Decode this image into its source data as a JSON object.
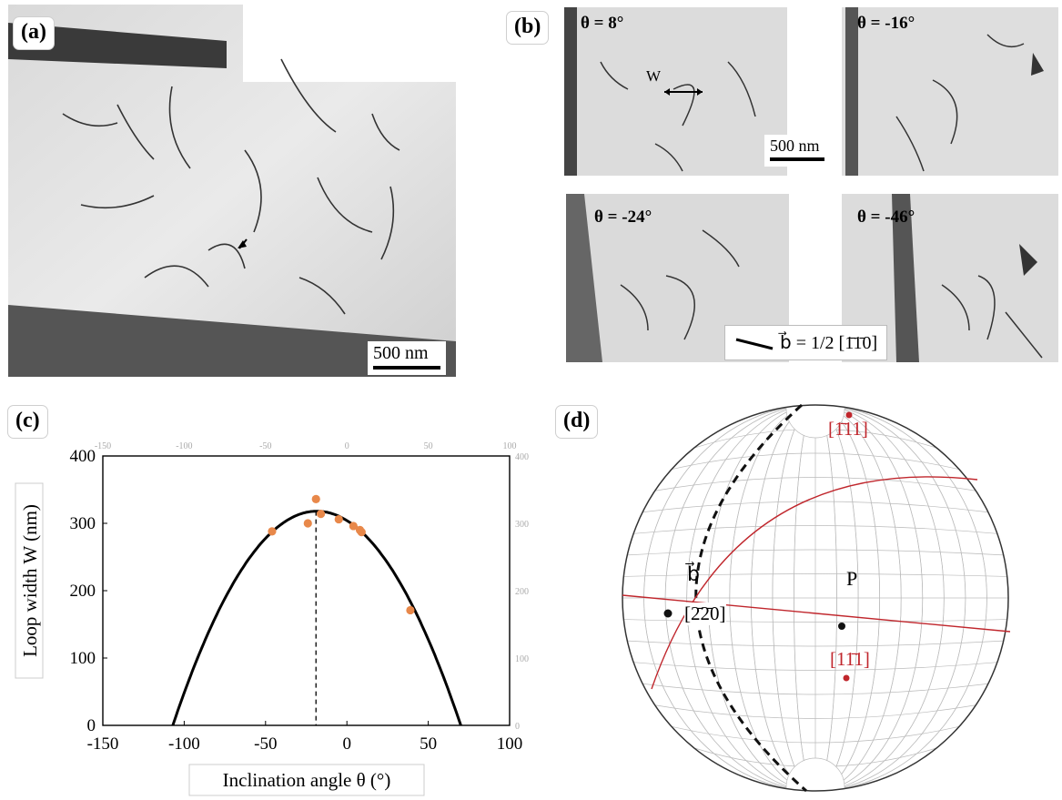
{
  "panels": {
    "a": {
      "label": "(a)",
      "scale": "500 nm"
    },
    "b": {
      "label": "(b)",
      "angles": [
        "θ = 8°",
        "θ = -16°",
        "θ = -24°",
        "θ = -46°"
      ],
      "w_label": "W",
      "scale": "500 nm",
      "burgers": "b⃗ = 1/2 [1̄1̄0]"
    },
    "c": {
      "label": "(c)"
    },
    "d": {
      "label": "(d)",
      "labels": {
        "p111a": "[1̄11]",
        "b_vec": "b⃗",
        "b_dir": "[2̄2̄0]",
        "p": "P",
        "p111b": "[11̄1]"
      },
      "colors": {
        "red": "#c0262c",
        "black": "#111111"
      }
    }
  },
  "chart_data": {
    "type": "scatter",
    "xlabel": "Inclination angle θ (°)",
    "ylabel": "Loop width W (nm)",
    "xlim": [
      -150,
      100
    ],
    "ylim": [
      0,
      400
    ],
    "xticks": [
      -150,
      -100,
      -50,
      0,
      50,
      100
    ],
    "yticks": [
      0,
      100,
      200,
      300,
      400
    ],
    "top_ticks": [
      -150,
      -100,
      -50,
      0,
      50,
      100
    ],
    "right_ticks": [
      0,
      100,
      200,
      300,
      400
    ],
    "points": [
      {
        "x": -46,
        "y": 288
      },
      {
        "x": -24,
        "y": 300
      },
      {
        "x": -19,
        "y": 336
      },
      {
        "x": -16,
        "y": 314
      },
      {
        "x": -5,
        "y": 306
      },
      {
        "x": 4,
        "y": 296
      },
      {
        "x": 8,
        "y": 290
      },
      {
        "x": 9,
        "y": 287
      },
      {
        "x": 39,
        "y": 171
      }
    ],
    "fit": {
      "peak_x": -19,
      "peak_y": 318,
      "roots": [
        -107,
        70
      ]
    },
    "vline_x": -19,
    "point_color": "#e8884a",
    "grid": false
  }
}
